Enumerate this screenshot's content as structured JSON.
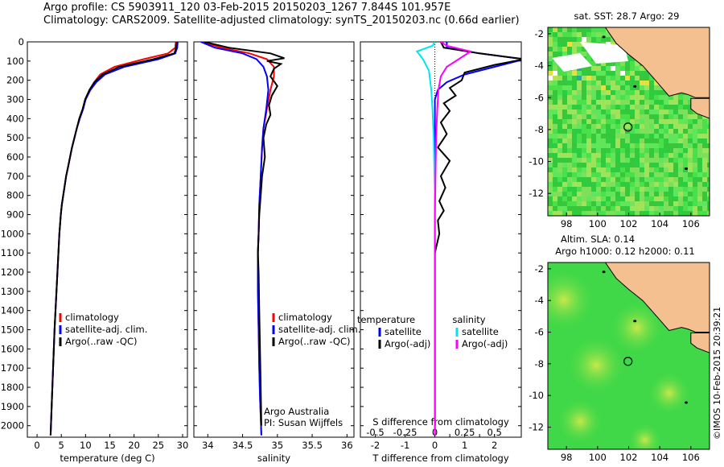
{
  "header": {
    "line1": "Argo profile: CS 5903911_120 03-Feb-2015 20150203_1267 7.844S 101.957E",
    "line2": "Climatology: CARS2009. Satellite-adjusted climatology: synTS_20150203.nc (0.66d earlier)"
  },
  "colors": {
    "climatology": "#ff0000",
    "satellite": "#0000ff",
    "argo": "#000000",
    "sat_salinity": "#00e5ee",
    "argo_salinity": "#ff00ff",
    "land": "#f4c090",
    "ocean_green": "#3cd84a"
  },
  "y_axis": {
    "label": "",
    "ticks": [
      0,
      100,
      200,
      300,
      400,
      500,
      600,
      700,
      800,
      900,
      1000,
      1100,
      1200,
      1300,
      1400,
      1500,
      1600,
      1700,
      1800,
      1900,
      2000
    ],
    "range": [
      0,
      2060
    ],
    "inverted": true
  },
  "chart_data": [
    {
      "type": "line",
      "panel": "temperature",
      "xlabel": "temperature (deg C)",
      "xticks": [
        0,
        5,
        10,
        15,
        20,
        25,
        30
      ],
      "xlim": [
        -2,
        31
      ],
      "ylim": [
        2060,
        0
      ],
      "series": [
        {
          "name": "climatology",
          "color": "#ff0000",
          "x": [
            28.6,
            28.5,
            27,
            22,
            16,
            13,
            11.8,
            10.9,
            10,
            9.5,
            8.8,
            8.2,
            7.7,
            7.2,
            6.8,
            6.4,
            6.0,
            5.7,
            5.4,
            5.1,
            4.9,
            4.6,
            4.4,
            4.2,
            4.0,
            3.8,
            3.6,
            3.3,
            3.0,
            2.8
          ],
          "y": [
            0,
            30,
            60,
            90,
            130,
            170,
            210,
            250,
            300,
            350,
            400,
            450,
            500,
            550,
            600,
            650,
            700,
            750,
            800,
            850,
            900,
            1000,
            1100,
            1200,
            1300,
            1400,
            1500,
            1700,
            1900,
            2050
          ]
        },
        {
          "name": "satellite-adj. clim.",
          "color": "#0000ff",
          "x": [
            29.0,
            28.9,
            28.5,
            25,
            18,
            14,
            12.2,
            11.0,
            10,
            9.5,
            8.8,
            8.2,
            7.7,
            7.2,
            6.8,
            6.4,
            6.0,
            5.7,
            5.4,
            5.1,
            4.9,
            4.6,
            4.4,
            4.2,
            4.0,
            3.8,
            3.6,
            3.3,
            3.0,
            2.8
          ],
          "y": [
            0,
            30,
            60,
            90,
            130,
            170,
            210,
            250,
            300,
            350,
            400,
            450,
            500,
            550,
            600,
            650,
            700,
            750,
            800,
            850,
            900,
            1000,
            1100,
            1200,
            1300,
            1400,
            1500,
            1700,
            1900,
            2050
          ]
        },
        {
          "name": "Argo(..raw -QC)",
          "color": "#000000",
          "x": [
            28.8,
            28.7,
            28.3,
            24,
            17,
            13.5,
            11.8,
            10.8,
            9.9,
            9.4,
            8.7,
            8.2,
            7.7,
            7.2,
            6.8,
            6.4,
            6.0,
            5.7,
            5.4,
            5.1,
            4.9,
            4.6,
            4.4,
            4.2,
            4.0,
            3.8,
            3.6,
            3.3,
            3.0,
            2.8
          ],
          "y": [
            0,
            30,
            60,
            90,
            130,
            170,
            210,
            250,
            300,
            350,
            400,
            450,
            500,
            550,
            600,
            650,
            700,
            750,
            800,
            850,
            900,
            1000,
            1100,
            1200,
            1300,
            1400,
            1500,
            1700,
            1900,
            2050
          ]
        }
      ],
      "legend": {
        "position": "bottom-right",
        "entries": [
          "climatology",
          "satellite-adj. clim.",
          "Argo(..raw -QC)"
        ]
      }
    },
    {
      "type": "line",
      "panel": "salinity",
      "xlabel": "salinity",
      "xticks": [
        34,
        34.5,
        35,
        35.5,
        36
      ],
      "xtick_labels": [
        "34",
        "34.5",
        "35",
        "35.5",
        "36"
      ],
      "xlim": [
        33.8,
        36.1
      ],
      "ylim": [
        2060,
        0
      ],
      "series": [
        {
          "name": "climatology",
          "color": "#ff0000",
          "x": [
            33.9,
            34.2,
            34.6,
            34.85,
            34.95,
            34.95,
            34.9,
            34.85,
            34.8,
            34.78,
            34.76,
            34.74,
            34.73,
            34.72,
            34.72,
            34.72,
            34.73,
            34.74,
            34.75,
            34.76,
            34.77
          ],
          "y": [
            0,
            30,
            60,
            90,
            130,
            180,
            250,
            350,
            450,
            550,
            700,
            850,
            1000,
            1100,
            1200,
            1300,
            1500,
            1700,
            1850,
            1950,
            2050
          ]
        },
        {
          "name": "satellite-adj. clim.",
          "color": "#0000ff",
          "x": [
            33.9,
            34.1,
            34.5,
            34.7,
            34.8,
            34.85,
            34.87,
            34.84,
            34.8,
            34.78,
            34.76,
            34.74,
            34.73,
            34.72,
            34.72,
            34.72,
            34.73,
            34.74,
            34.75,
            34.76,
            34.77
          ],
          "y": [
            0,
            30,
            60,
            90,
            130,
            180,
            250,
            350,
            450,
            550,
            700,
            850,
            1000,
            1100,
            1200,
            1300,
            1500,
            1700,
            1850,
            1950,
            2050
          ]
        },
        {
          "name": "Argo(..raw -QC)",
          "color": "#000000",
          "x": [
            33.95,
            34.3,
            34.9,
            35.1,
            34.85,
            35.05,
            34.95,
            34.9,
            35.0,
            34.92,
            34.88,
            34.9,
            34.84,
            34.8,
            34.82,
            34.78,
            34.76,
            34.74,
            34.73,
            34.72,
            34.73,
            34.74,
            34.75,
            34.76,
            34.77
          ],
          "y": [
            0,
            30,
            60,
            85,
            100,
            115,
            140,
            180,
            230,
            280,
            330,
            380,
            430,
            500,
            600,
            700,
            800,
            900,
            1000,
            1100,
            1200,
            1400,
            1600,
            1800,
            2000
          ]
        }
      ],
      "legend": {
        "position": "bottom-right",
        "entries": [
          "climatology",
          "satellite-adj. clim.",
          "Argo(..raw -QC)"
        ]
      },
      "annotations": [
        "Argo Australia",
        "PI: Susan Wijffels"
      ]
    },
    {
      "type": "line",
      "panel": "differences",
      "xlabel": "T difference from climatology",
      "xticks": [
        -2,
        -1,
        0,
        0.5,
        1,
        1.5,
        2
      ],
      "xtick_labels": [
        "-2",
        "-1",
        "0",
        "",
        "1",
        "",
        "2"
      ],
      "xlim": [
        -2.5,
        2.9
      ],
      "top_label": "S difference from climatology",
      "top_ticks": [
        -0.5,
        -0.25,
        0,
        0.25,
        0.5
      ],
      "top_tick_labels": [
        "-0.5",
        "-0.25",
        "0",
        "0.25",
        "0.5"
      ],
      "top_lim": [
        -0.625,
        0.725
      ],
      "ylim": [
        2060,
        0
      ],
      "series": [
        {
          "name": "temperature satellite",
          "color": "#0000ff",
          "axis": "T",
          "x": [
            0.4,
            0.4,
            1.5,
            3.0,
            2.0,
            1.0,
            0.4,
            0.1,
            0,
            0,
            0,
            0,
            0,
            0,
            0,
            0,
            0
          ],
          "y": [
            0,
            30,
            60,
            90,
            130,
            170,
            210,
            250,
            300,
            400,
            500,
            700,
            900,
            1100,
            1400,
            1700,
            2050
          ]
        },
        {
          "name": "temperature Argo(-adj)",
          "color": "#000000",
          "axis": "T",
          "x": [
            0.2,
            0.3,
            1.5,
            3.0,
            2.0,
            1.0,
            0.9,
            0.5,
            0.7,
            0.3,
            0.5,
            0.2,
            0.4,
            0.1,
            0.5,
            0.2,
            0.35,
            0.15,
            0.3,
            0.1,
            0.15,
            0,
            0,
            0,
            0,
            0,
            0,
            0
          ],
          "y": [
            0,
            30,
            60,
            90,
            120,
            160,
            200,
            240,
            280,
            320,
            360,
            420,
            480,
            550,
            620,
            700,
            760,
            830,
            880,
            930,
            1000,
            1100,
            1200,
            1400,
            1600,
            1800,
            2000,
            2050
          ]
        },
        {
          "name": "salinity satellite",
          "color": "#00e5ee",
          "axis": "S",
          "x": [
            0,
            -0.02,
            -0.15,
            -0.1,
            -0.05,
            -0.03,
            -0.02,
            -0.01,
            0,
            0,
            0
          ],
          "y": [
            0,
            20,
            50,
            90,
            150,
            250,
            350,
            500,
            800,
            1300,
            2050
          ]
        },
        {
          "name": "salinity Argo(-adj)",
          "color": "#ff00ff",
          "axis": "S",
          "x": [
            0.05,
            0.1,
            0.3,
            0.2,
            0.1,
            0.05,
            0.03,
            0.02,
            0.01,
            0,
            0
          ],
          "y": [
            0,
            20,
            50,
            90,
            130,
            180,
            250,
            350,
            500,
            900,
            2050
          ]
        }
      ],
      "legend": {
        "position": "bottom",
        "columns": [
          {
            "title": "temperature",
            "entries": [
              "satellite",
              "Argo(-adj)"
            ]
          },
          {
            "title": "salinity",
            "entries": [
              "satellite",
              "Argo(-adj)"
            ]
          }
        ]
      }
    },
    {
      "type": "heatmap",
      "panel": "map_sst",
      "title": "sat. SST: 28.7 Argo: 29",
      "xticks": [
        98,
        100,
        102,
        104,
        106
      ],
      "yticks": [
        -2,
        -4,
        -6,
        -8,
        -10,
        -12
      ],
      "xlim": [
        96.8,
        107.2
      ],
      "ylim": [
        -13.4,
        -1.6
      ],
      "profile_marker": {
        "lon": 101.957,
        "lat": -7.844
      }
    },
    {
      "type": "heatmap",
      "panel": "map_sla",
      "title": "Altim. SLA: 0.14",
      "subtitle": "Argo h1000: 0.12 h2000: 0.11",
      "xticks": [
        98,
        100,
        102,
        104,
        106
      ],
      "yticks": [
        -2,
        -4,
        -6,
        -8,
        -10,
        -12
      ],
      "xlim": [
        96.8,
        107.2
      ],
      "ylim": [
        -13.4,
        -1.6
      ],
      "profile_marker": {
        "lon": 101.957,
        "lat": -7.844
      }
    }
  ],
  "footer_vertical": "©IMOS 10-Feb-2015 20:39:21"
}
